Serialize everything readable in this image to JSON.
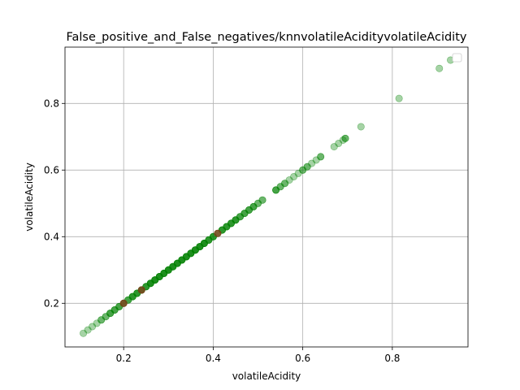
{
  "chart_data": {
    "type": "scatter",
    "title": "False_positive_and_False_negatives/knnvolatileAcidityvolatileAcidity",
    "xlabel": "volatileAcidity",
    "ylabel": "volatileAcidity",
    "xlim": [
      0.069,
      0.969
    ],
    "ylim": [
      0.069,
      0.969
    ],
    "xticks": [
      0.2,
      0.4,
      0.6,
      0.8
    ],
    "yticks": [
      0.2,
      0.4,
      0.6,
      0.8
    ],
    "xtick_labels": [
      "0.2",
      "0.4",
      "0.6",
      "0.8"
    ],
    "ytick_labels": [
      "0.2",
      "0.4",
      "0.6",
      "0.8"
    ],
    "grid": true,
    "legend": {
      "placement": "top-right",
      "entries": []
    },
    "colors": {
      "correct": "#008000",
      "misclassified": "#b22222",
      "grid": "#b0b0b0"
    },
    "series": [
      {
        "color": "#008000",
        "alpha": 0.35,
        "x": [
          0.11,
          0.12,
          0.13,
          0.14,
          0.15,
          0.16,
          0.17,
          0.18,
          0.19,
          0.2,
          0.21,
          0.22,
          0.23,
          0.24,
          0.25,
          0.26,
          0.27,
          0.28,
          0.29,
          0.3,
          0.31,
          0.32,
          0.33,
          0.34,
          0.35,
          0.36,
          0.37,
          0.38,
          0.39,
          0.4,
          0.41,
          0.42,
          0.43,
          0.44,
          0.45,
          0.46,
          0.47,
          0.48,
          0.49,
          0.5,
          0.51,
          0.54,
          0.55,
          0.56,
          0.57,
          0.58,
          0.59,
          0.6,
          0.61,
          0.62,
          0.63,
          0.64,
          0.67,
          0.68,
          0.69,
          0.695,
          0.73,
          0.815,
          0.905,
          0.93
        ],
        "y": [
          0.11,
          0.12,
          0.13,
          0.14,
          0.15,
          0.16,
          0.17,
          0.18,
          0.19,
          0.2,
          0.21,
          0.22,
          0.23,
          0.24,
          0.25,
          0.26,
          0.27,
          0.28,
          0.29,
          0.3,
          0.31,
          0.32,
          0.33,
          0.34,
          0.35,
          0.36,
          0.37,
          0.38,
          0.39,
          0.4,
          0.41,
          0.42,
          0.43,
          0.44,
          0.45,
          0.46,
          0.47,
          0.48,
          0.49,
          0.5,
          0.51,
          0.54,
          0.55,
          0.56,
          0.57,
          0.58,
          0.59,
          0.6,
          0.61,
          0.62,
          0.63,
          0.64,
          0.67,
          0.68,
          0.69,
          0.695,
          0.73,
          0.815,
          0.905,
          0.93
        ],
        "multiplicity": [
          1,
          1,
          1,
          1,
          2,
          2,
          3,
          3,
          3,
          4,
          3,
          4,
          4,
          5,
          4,
          5,
          5,
          5,
          5,
          5,
          5,
          5,
          5,
          5,
          5,
          5,
          5,
          5,
          4,
          4,
          3,
          4,
          4,
          4,
          4,
          3,
          3,
          3,
          3,
          2,
          2,
          3,
          2,
          2,
          1,
          1,
          1,
          2,
          2,
          1,
          1,
          2,
          1,
          1,
          1,
          2,
          1,
          1,
          1,
          1
        ]
      },
      {
        "color": "#b22222",
        "alpha": 0.55,
        "x": [
          0.2,
          0.24,
          0.41
        ],
        "y": [
          0.2,
          0.24,
          0.41
        ],
        "multiplicity": [
          1,
          1,
          1
        ]
      }
    ]
  }
}
